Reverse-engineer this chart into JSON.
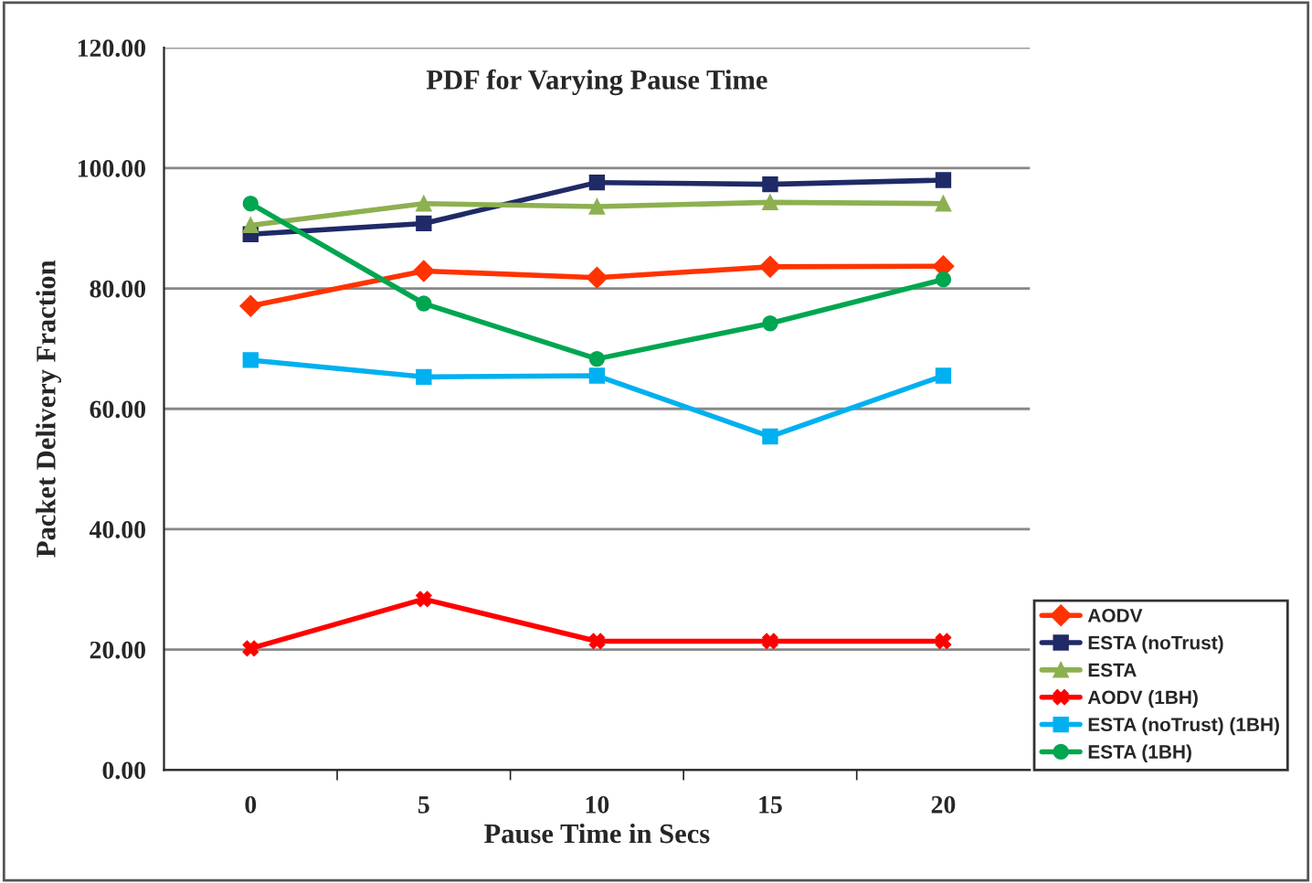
{
  "chart_data": {
    "type": "line",
    "title": "PDF for Varying Pause Time",
    "xlabel": "Pause Time in Secs",
    "ylabel": "Packet Delivery Fraction",
    "categories": [
      "0",
      "5",
      "10",
      "15",
      "20"
    ],
    "series": [
      {
        "name": "AODV",
        "color": "#ff3300",
        "marker": "diamond",
        "values": [
          77.1,
          82.9,
          81.8,
          83.6,
          83.7
        ]
      },
      {
        "name": "ESTA (noTrust)",
        "color": "#1f2a66",
        "marker": "square",
        "values": [
          89.0,
          90.8,
          97.6,
          97.3,
          98.0
        ]
      },
      {
        "name": "ESTA",
        "color": "#8db050",
        "marker": "triangle",
        "values": [
          90.5,
          94.1,
          93.6,
          94.3,
          94.1
        ]
      },
      {
        "name": "AODV (1BH)",
        "color": "#ff0000",
        "marker": "cross",
        "values": [
          20.2,
          28.4,
          21.4,
          21.4,
          21.4
        ]
      },
      {
        "name": "ESTA (noTrust) (1BH)",
        "color": "#00b0f0",
        "marker": "square",
        "values": [
          68.1,
          65.3,
          65.5,
          55.4,
          65.5
        ]
      },
      {
        "name": "ESTA (1BH)",
        "color": "#00a650",
        "marker": "circle",
        "values": [
          94.1,
          77.5,
          68.3,
          74.2,
          81.5
        ]
      }
    ],
    "ylim": [
      0,
      120
    ],
    "yticks": [
      {
        "value": 0,
        "label": "0.00"
      },
      {
        "value": 20,
        "label": "20.00"
      },
      {
        "value": 40,
        "label": "40.00"
      },
      {
        "value": 60,
        "label": "60.00"
      },
      {
        "value": 80,
        "label": "80.00"
      },
      {
        "value": 100,
        "label": "100.00"
      },
      {
        "value": 120,
        "label": "120.00"
      }
    ],
    "grid": "y",
    "legend": "bottom right",
    "line_style": "solid"
  }
}
